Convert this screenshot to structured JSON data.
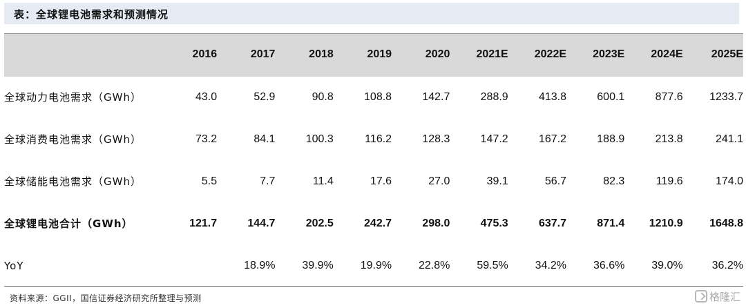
{
  "title": "表：全球锂电池需求和预测情况",
  "table": {
    "columns": [
      "2016",
      "2017",
      "2018",
      "2019",
      "2020",
      "2021E",
      "2022E",
      "2023E",
      "2024E",
      "2025E"
    ],
    "rows": [
      {
        "label": "全球动力电池需求（GWh）",
        "values": [
          "43.0",
          "52.9",
          "90.8",
          "108.8",
          "142.7",
          "288.9",
          "413.8",
          "600.1",
          "877.6",
          "1233.7"
        ]
      },
      {
        "label": "全球消费电池需求（GWh）",
        "values": [
          "73.2",
          "84.1",
          "100.3",
          "116.2",
          "128.3",
          "147.2",
          "167.2",
          "188.9",
          "213.8",
          "241.1"
        ]
      },
      {
        "label": "全球储能电池需求（GWh）",
        "values": [
          "5.5",
          "7.7",
          "11.4",
          "17.6",
          "27.0",
          "39.1",
          "56.7",
          "82.3",
          "119.6",
          "174.0"
        ]
      },
      {
        "label": "全球锂电池合计（GWh）",
        "values": [
          "121.7",
          "144.7",
          "202.5",
          "242.7",
          "298.0",
          "475.3",
          "637.7",
          "871.4",
          "1210.9",
          "1648.8"
        ]
      },
      {
        "label": "YoY",
        "values": [
          "",
          "18.9%",
          "39.9%",
          "19.9%",
          "22.8%",
          "59.5%",
          "34.2%",
          "36.6%",
          "39.0%",
          "36.2%"
        ]
      }
    ]
  },
  "source": "资料来源：GGII，国信证券经济研究所整理与预测",
  "watermark": "格隆汇"
}
